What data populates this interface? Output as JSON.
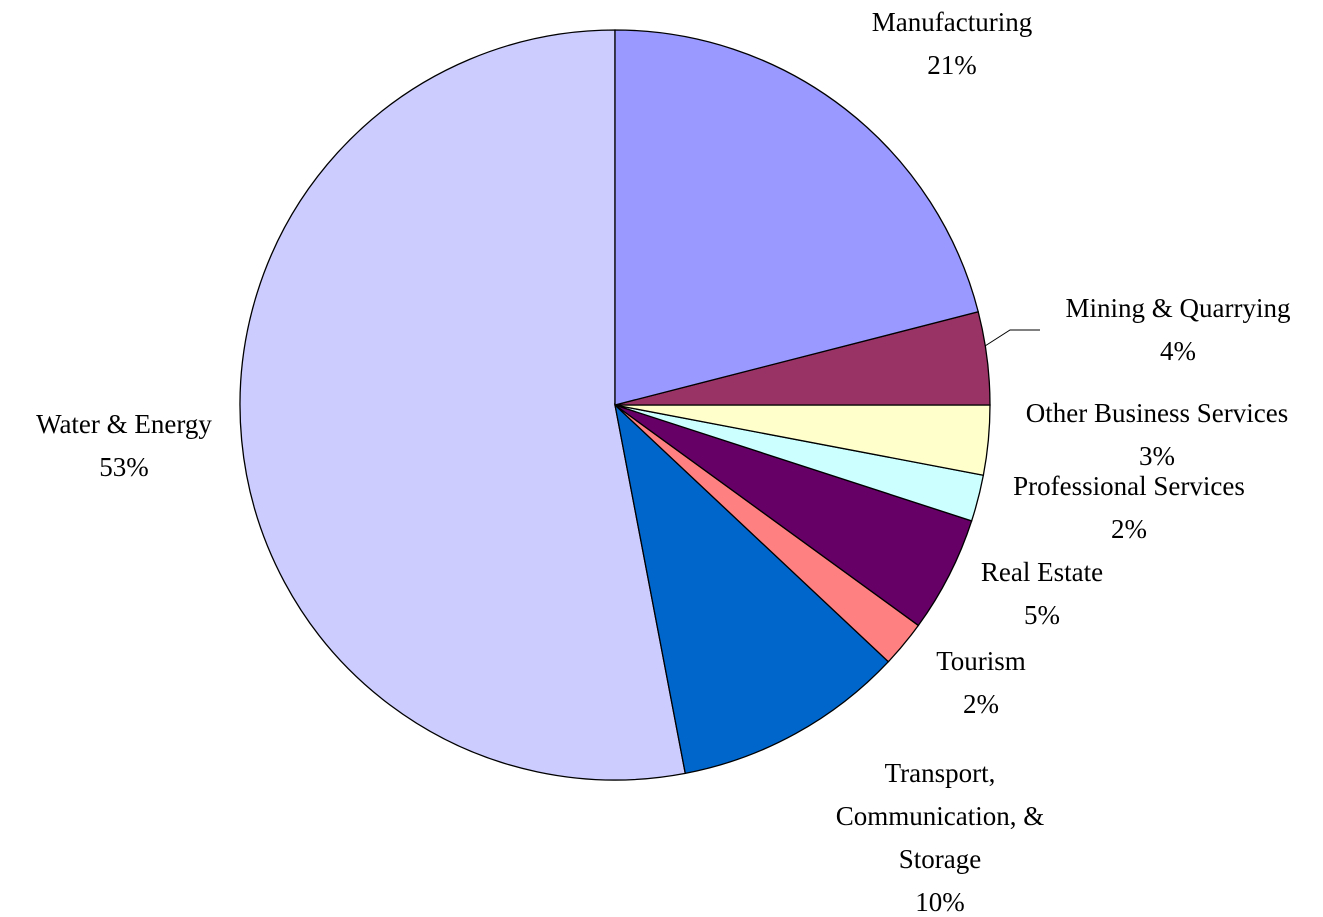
{
  "chart_data": {
    "type": "pie",
    "categories": [
      "Manufacturing",
      "Mining & Quarrying",
      "Other Business Services",
      "Professional Services",
      "Real Estate",
      "Tourism",
      "Transport, Communication, & Storage",
      "Water & Energy"
    ],
    "values": [
      21,
      4,
      3,
      2,
      5,
      2,
      10,
      53
    ],
    "value_labels": [
      "21%",
      "4%",
      "3%",
      "2%",
      "5%",
      "2%",
      "10%",
      "53%"
    ],
    "colors": [
      "#9999ff",
      "#993366",
      "#ffffcc",
      "#ccffff",
      "#660066",
      "#ff8080",
      "#0066cc",
      "#ccccff"
    ]
  }
}
